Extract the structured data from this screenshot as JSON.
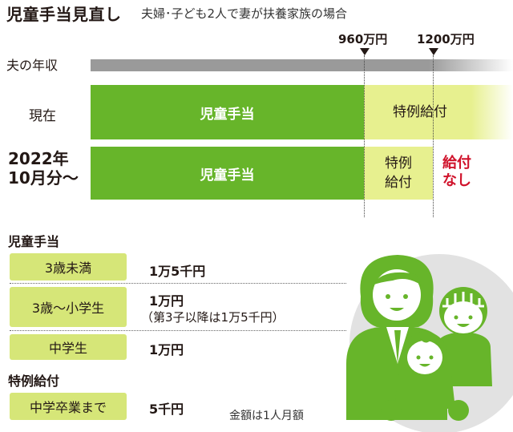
{
  "header": {
    "title": "児童手当見直し",
    "subtitle": "夫婦･子ども2人で妻が扶養家族の場合"
  },
  "income": {
    "label": "夫の年収",
    "thresholds": [
      "960万円",
      "1200万円"
    ]
  },
  "rows": {
    "current": {
      "label": "現在",
      "allowance": "児童手当",
      "special": "特例給付"
    },
    "from2022": {
      "label_line1": "2022年",
      "label_line2": "10月分～",
      "allowance": "児童手当",
      "special_line1": "特例",
      "special_line2": "給付",
      "none_line1": "給付",
      "none_line2": "なし"
    }
  },
  "allowance_table": {
    "heading": "児童手当",
    "items": [
      {
        "category": "3歳未満",
        "amount": "1万5千円"
      },
      {
        "category": "3歳～小学生",
        "amount": "1万円",
        "note": "（第3子以降は1万5千円）"
      },
      {
        "category": "中学生",
        "amount": "1万円"
      }
    ]
  },
  "special_table": {
    "heading": "特例給付",
    "items": [
      {
        "category": "中学卒業まで",
        "amount": "5千円"
      }
    ]
  },
  "footnote": "金額は1人月額",
  "colors": {
    "green": "#67b52a",
    "lime": "#e7f08f",
    "red": "#d0122b",
    "illustration_gray": "#e2e2e2"
  }
}
